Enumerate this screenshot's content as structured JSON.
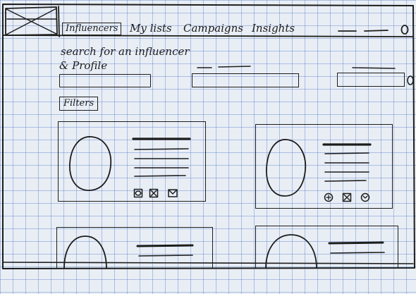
{
  "nav": {
    "tabs": [
      {
        "label": "Influencers",
        "active": true
      },
      {
        "label": "My lists"
      },
      {
        "label": "Campaigns"
      },
      {
        "label": "Insights"
      }
    ]
  },
  "search": {
    "title_line1": "search for an influencer",
    "title_line2": "& Profile"
  },
  "filters": {
    "label": "Filters"
  },
  "cards": [
    {
      "actions": [
        "like-icon",
        "bookmark-icon",
        "message-icon"
      ]
    },
    {
      "actions": [
        "like-icon",
        "bookmark-icon",
        "message-icon"
      ]
    }
  ]
}
